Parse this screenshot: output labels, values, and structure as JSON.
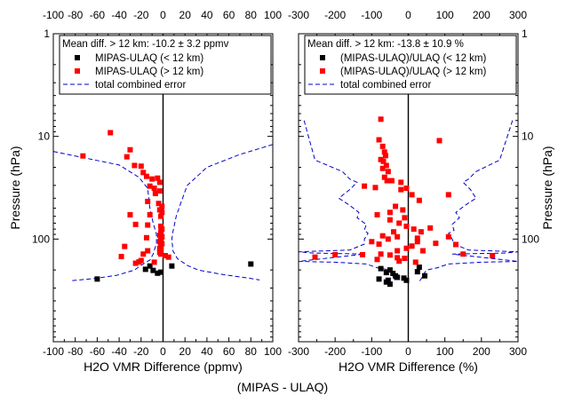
{
  "chart_data": [
    {
      "type": "scatter",
      "xlabel": "H2O VMR Difference (ppmv)",
      "ylabel": "Pressure (hPa)",
      "xlim": [
        -100,
        100
      ],
      "ylim": [
        1000,
        1
      ],
      "y_scale": "log",
      "x_ticks": [
        -100,
        -80,
        -60,
        -40,
        -20,
        0,
        20,
        40,
        60,
        80,
        100
      ],
      "top_ticks": [
        -100,
        -80,
        -60,
        -40,
        -20,
        0,
        20,
        40,
        60,
        80,
        100
      ],
      "y_tick_labels": [
        {
          "value": 1,
          "label": "1"
        },
        {
          "value": 10,
          "label": "10"
        },
        {
          "value": 100,
          "label": "100"
        }
      ],
      "annotation": "Mean diff. > 12 km: -10.2 ± 3.2 ppmv",
      "legend_position": "top-right",
      "series": [
        {
          "name": "MIPAS-ULAQ (< 12 km)",
          "color": "#000000",
          "marker": "square",
          "points": [
            [
              -60,
              245
            ],
            [
              -16,
              197
            ],
            [
              -12,
              183
            ],
            [
              -9,
              202
            ],
            [
              -5,
              215
            ],
            [
              -2,
              210
            ],
            [
              8,
              183
            ],
            [
              80,
              175
            ]
          ]
        },
        {
          "name": "MIPAS-ULAQ (> 12 km)",
          "color": "#ff0000",
          "marker": "square",
          "points": [
            [
              -48,
              9.2
            ],
            [
              -73,
              15.5
            ],
            [
              -30,
              13.5
            ],
            [
              -33,
              15.8
            ],
            [
              -26,
              19.2
            ],
            [
              -20,
              19.5
            ],
            [
              -18,
              22.5
            ],
            [
              -15,
              24.5
            ],
            [
              -10,
              26
            ],
            [
              -5,
              25.5
            ],
            [
              -3,
              28
            ],
            [
              -12,
              30.5
            ],
            [
              -8,
              32
            ],
            [
              -3,
              34
            ],
            [
              -7,
              36
            ],
            [
              -14,
              43
            ],
            [
              -4,
              45
            ],
            [
              -1,
              48
            ],
            [
              -3,
              52
            ],
            [
              -1,
              55
            ],
            [
              -30,
              58
            ],
            [
              -12,
              58
            ],
            [
              -2,
              60
            ],
            [
              -25,
              72
            ],
            [
              -14,
              73
            ],
            [
              -2,
              75
            ],
            [
              -1,
              80
            ],
            [
              -2,
              85
            ],
            [
              -3,
              92
            ],
            [
              -1,
              95
            ],
            [
              -15,
              97
            ],
            [
              -2,
              100
            ],
            [
              -3,
              106
            ],
            [
              -1,
              111
            ],
            [
              -2,
              117
            ],
            [
              -35,
              118
            ],
            [
              -3,
              123
            ],
            [
              -2,
              128
            ],
            [
              -14,
              130
            ],
            [
              -3,
              135
            ],
            [
              -38,
              148
            ],
            [
              -18,
              140
            ],
            [
              -20,
              162
            ],
            [
              -22,
              167
            ],
            [
              -25,
              172
            ],
            [
              -8,
              168
            ],
            [
              -2,
              140
            ],
            [
              2,
              145
            ],
            [
              5,
              150
            ]
          ]
        },
        {
          "name": "total combined error",
          "color": "#0000cc",
          "style": "dashed",
          "left_envelope": [
            [
              -100,
              14
            ],
            [
              -40,
              19
            ],
            [
              -22,
              25
            ],
            [
              -14,
              32
            ],
            [
              -12,
              50
            ],
            [
              -9,
              70
            ],
            [
              -6,
              90
            ],
            [
              -6,
              110
            ],
            [
              -9,
              140
            ],
            [
              -12,
              160
            ],
            [
              -20,
              180
            ],
            [
              -26,
              200
            ],
            [
              -42,
              225
            ],
            [
              -62,
              242
            ],
            [
              -85,
              255
            ]
          ],
          "right_envelope": [
            [
              100,
              12
            ],
            [
              70,
              15
            ],
            [
              40,
              20
            ],
            [
              22,
              30
            ],
            [
              16,
              45
            ],
            [
              12,
              60
            ],
            [
              9,
              85
            ],
            [
              8,
              100
            ],
            [
              9,
              130
            ],
            [
              13,
              155
            ],
            [
              22,
              180
            ],
            [
              32,
              200
            ],
            [
              55,
              222
            ],
            [
              78,
              240
            ],
            [
              88,
              250
            ]
          ]
        }
      ]
    },
    {
      "type": "scatter",
      "xlabel": "H2O VMR Difference (%)",
      "ylabel": "Pressure (hPa)",
      "xlim": [
        -300,
        300
      ],
      "ylim": [
        1000,
        1
      ],
      "y_scale": "log",
      "x_ticks": [
        -300,
        -200,
        -100,
        0,
        100,
        200,
        300
      ],
      "top_ticks": [
        -300,
        -200,
        -100,
        0,
        100,
        200,
        300
      ],
      "y_tick_labels": [
        {
          "value": 1,
          "label": "1"
        },
        {
          "value": 10,
          "label": "10"
        },
        {
          "value": 100,
          "label": "100"
        }
      ],
      "annotation": "Mean diff. > 12 km: -13.8 ± 10.9 %",
      "legend_position": "top-right",
      "series": [
        {
          "name": "(MIPAS-ULAQ)/ULAQ (< 12 km)",
          "color": "#000000",
          "marker": "square",
          "points": [
            [
              -75,
              194
            ],
            [
              -60,
              212
            ],
            [
              -50,
              200
            ],
            [
              -42,
              216
            ],
            [
              -35,
              228
            ],
            [
              -80,
              245
            ],
            [
              -30,
              236
            ],
            [
              -55,
              252
            ],
            [
              -12,
              240
            ],
            [
              -60,
              262
            ],
            [
              -50,
              275
            ],
            [
              30,
              188
            ],
            [
              25,
              208
            ],
            [
              45,
              228
            ],
            [
              -5,
              252
            ]
          ]
        },
        {
          "name": "(MIPAS-ULAQ)/ULAQ (> 12 km)",
          "color": "#ff0000",
          "marker": "square",
          "points": [
            [
              -75,
              6.8
            ],
            [
              -80,
              10.8
            ],
            [
              -70,
              12.5
            ],
            [
              -65,
              14.2
            ],
            [
              -62,
              15.4
            ],
            [
              -75,
              16.8
            ],
            [
              -68,
              17.5
            ],
            [
              -60,
              19.2
            ],
            [
              -70,
              20.5
            ],
            [
              -55,
              22
            ],
            [
              -65,
              25
            ],
            [
              -58,
              27
            ],
            [
              -45,
              27
            ],
            [
              -20,
              28
            ],
            [
              85,
              11
            ],
            [
              -120,
              30.5
            ],
            [
              -90,
              31.5
            ],
            [
              -20,
              33
            ],
            [
              -5,
              32
            ],
            [
              10,
              37
            ],
            [
              30,
              42
            ],
            [
              110,
              37
            ],
            [
              -35,
              48
            ],
            [
              -15,
              52
            ],
            [
              -50,
              55
            ],
            [
              -85,
              58
            ],
            [
              -50,
              65
            ],
            [
              -25,
              70
            ],
            [
              -10,
              62
            ],
            [
              -5,
              75
            ],
            [
              15,
              80
            ],
            [
              60,
              78
            ],
            [
              35,
              85
            ],
            [
              -40,
              85
            ],
            [
              -70,
              93
            ],
            [
              -30,
              95
            ],
            [
              25,
              98
            ],
            [
              110,
              95
            ],
            [
              -55,
              100
            ],
            [
              -100,
              106
            ],
            [
              -80,
              112
            ],
            [
              25,
              106
            ],
            [
              75,
              110
            ],
            [
              10,
              117
            ],
            [
              130,
              113
            ],
            [
              -5,
              123
            ],
            [
              -30,
              130
            ],
            [
              40,
              130
            ],
            [
              -75,
              140
            ],
            [
              -50,
              143
            ],
            [
              -125,
              142
            ],
            [
              -200,
              142
            ],
            [
              -255,
              150
            ],
            [
              -30,
              152
            ],
            [
              -10,
              154
            ],
            [
              -85,
              158
            ],
            [
              -25,
              164
            ],
            [
              150,
              140
            ],
            [
              230,
              145
            ],
            [
              20,
              168
            ]
          ]
        },
        {
          "name": "total combined error",
          "color": "#0000cc",
          "style": "dashed",
          "left_envelope": [
            [
              -285,
              7
            ],
            [
              -255,
              17
            ],
            [
              -180,
              22
            ],
            [
              -160,
              26
            ],
            [
              -140,
              28
            ],
            [
              -160,
              33
            ],
            [
              -190,
              40
            ],
            [
              -160,
              47
            ],
            [
              -135,
              55
            ],
            [
              -140,
              62
            ],
            [
              -115,
              72
            ],
            [
              -120,
              82
            ],
            [
              -110,
              88
            ],
            [
              -120,
              100
            ],
            [
              -120,
              112
            ],
            [
              -160,
              128
            ],
            [
              -300,
              133
            ],
            [
              -260,
              137
            ],
            [
              -120,
              140
            ],
            [
              -300,
              165
            ],
            [
              -200,
              168
            ],
            [
              -115,
              175
            ],
            [
              -85,
              190
            ],
            [
              -50,
              200
            ],
            [
              -45,
              220
            ],
            [
              -38,
              245
            ],
            [
              -35,
              260
            ]
          ],
          "right_envelope": [
            [
              285,
              7
            ],
            [
              250,
              17
            ],
            [
              185,
              22
            ],
            [
              165,
              26
            ],
            [
              150,
              28
            ],
            [
              170,
              33
            ],
            [
              185,
              40
            ],
            [
              155,
              47
            ],
            [
              130,
              55
            ],
            [
              140,
              62
            ],
            [
              120,
              72
            ],
            [
              125,
              82
            ],
            [
              110,
              88
            ],
            [
              120,
              100
            ],
            [
              125,
              112
            ],
            [
              165,
              128
            ],
            [
              300,
              133
            ],
            [
              265,
              137
            ],
            [
              120,
              140
            ],
            [
              300,
              165
            ],
            [
              200,
              168
            ],
            [
              110,
              175
            ],
            [
              80,
              190
            ],
            [
              50,
              200
            ],
            [
              42,
              220
            ],
            [
              35,
              245
            ],
            [
              30,
              260
            ]
          ]
        }
      ]
    }
  ],
  "footer_label": "(MIPAS - ULAQ)"
}
